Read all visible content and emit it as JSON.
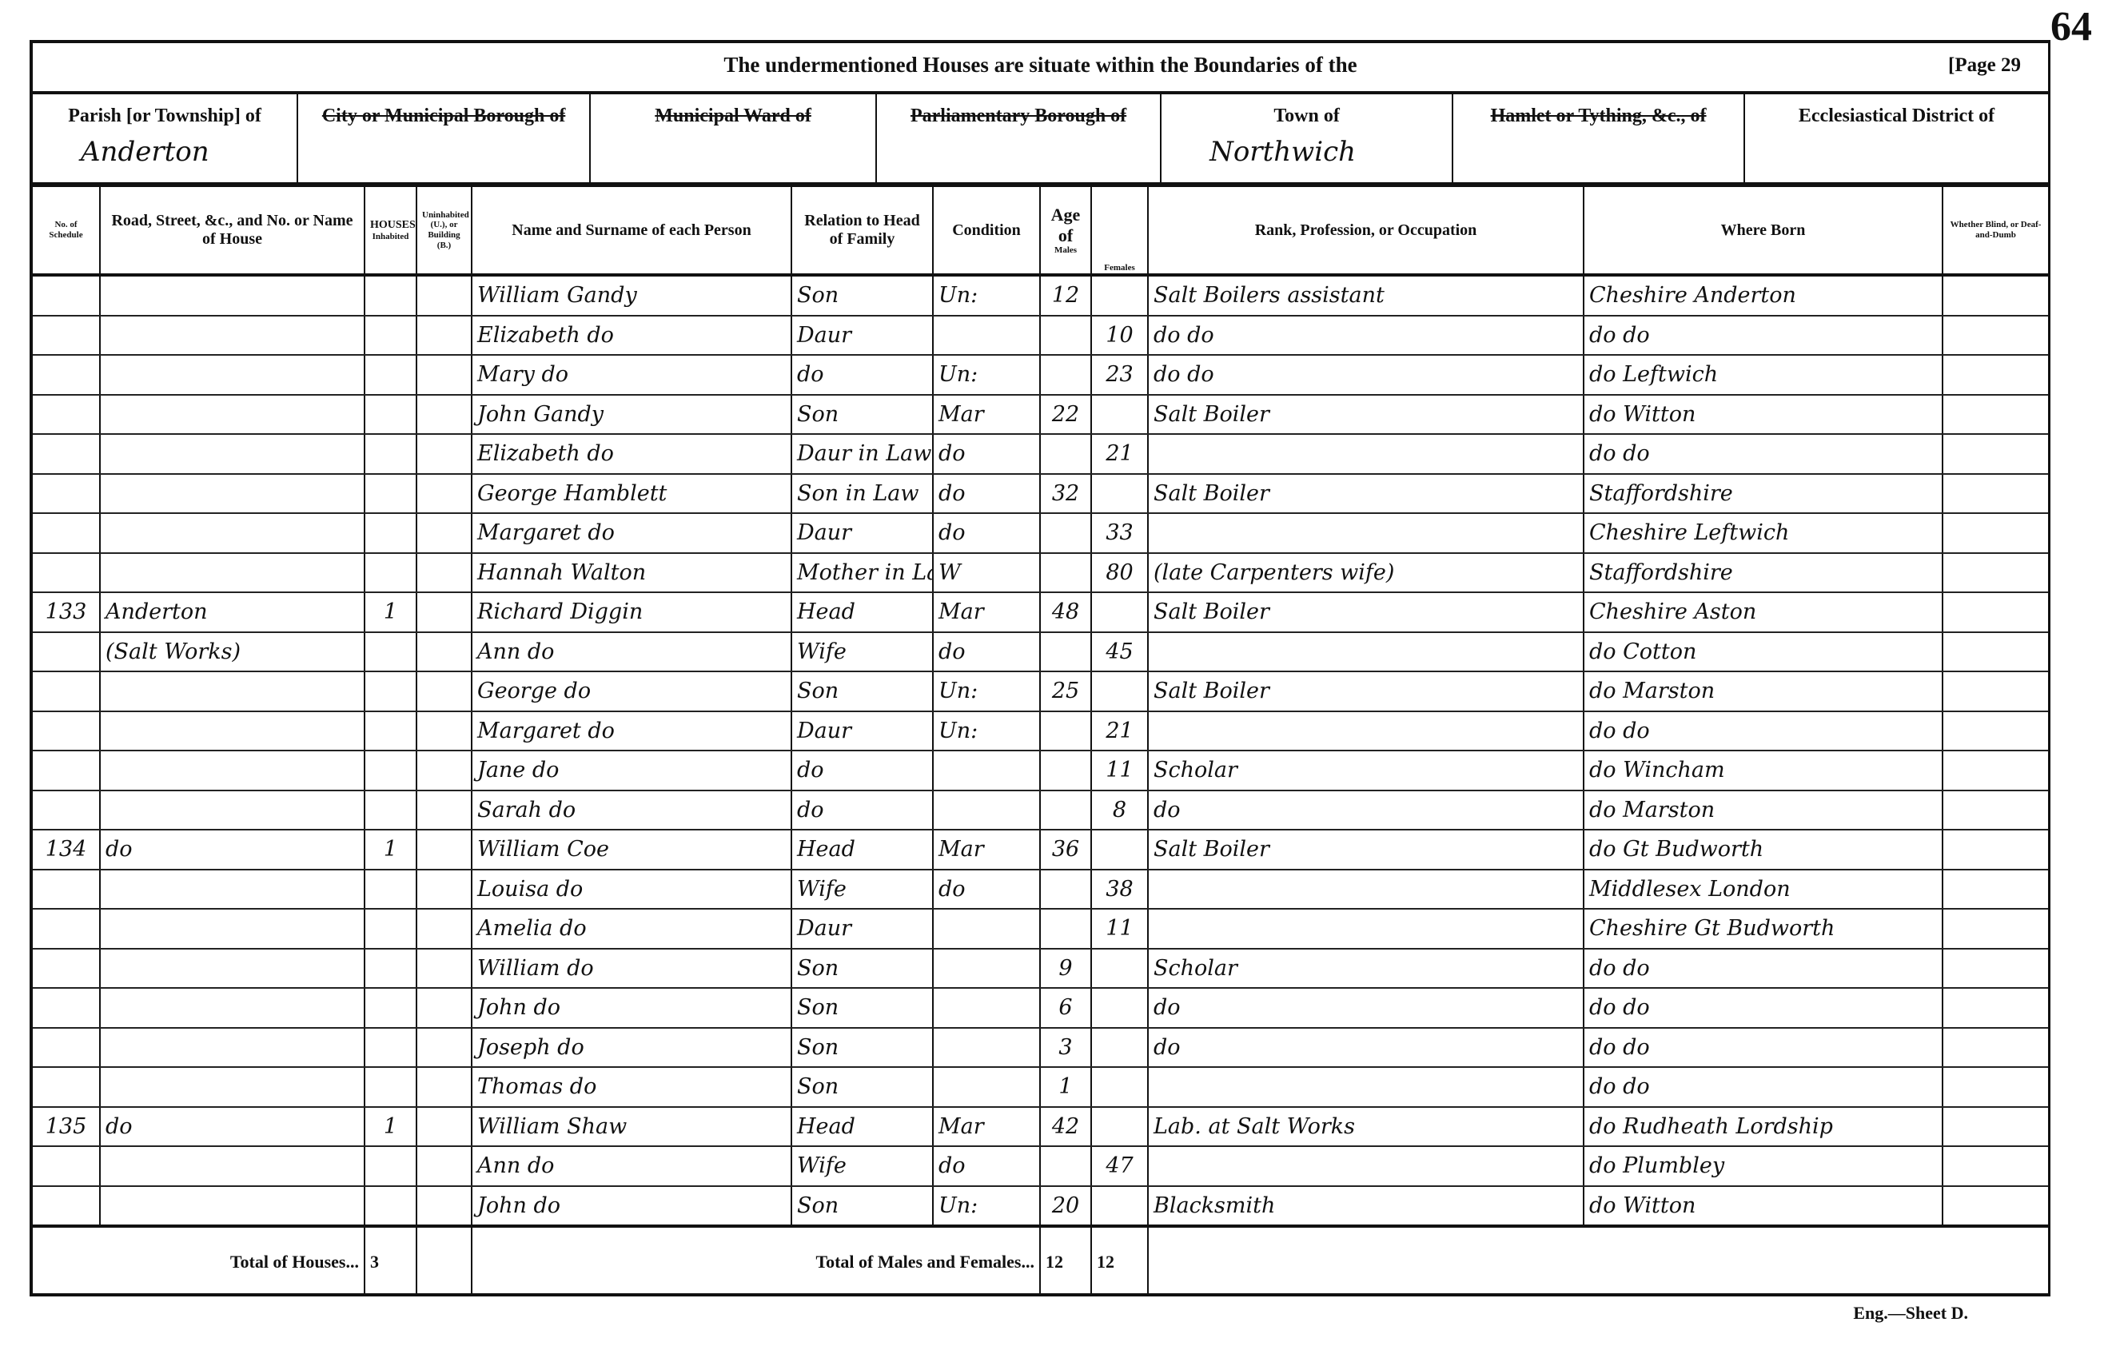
{
  "page_number": "64",
  "header": {
    "title": "The undermentioned Houses are situate within the Boundaries of the",
    "page_ref": "[Page 29",
    "places": [
      {
        "label": "Parish [or Township] of",
        "value": "Anderton",
        "struck": false
      },
      {
        "label": "City or Municipal Borough of",
        "value": "",
        "struck": true
      },
      {
        "label": "Municipal Ward of",
        "value": "",
        "struck": true
      },
      {
        "label": "Parliamentary Borough of",
        "value": "",
        "struck": true
      },
      {
        "label": "Town of",
        "value": "Northwich",
        "struck": false
      },
      {
        "label": "Hamlet or Tything, &c., of",
        "value": "",
        "struck": true
      },
      {
        "label": "Ecclesiastical District of",
        "value": "",
        "struck": false
      }
    ]
  },
  "columns": [
    "No. of Schedule",
    "Road, Street, &c., and No. or Name of House",
    "Inhabited",
    "Uninhabited (U.), or Building (B.)",
    "Name and Surname of each Person",
    "Relation to Head of Family",
    "Condition",
    "Males",
    "Females",
    "Rank, Profession, or Occupation",
    "Where Born",
    "Whether Blind, or Deaf-and-Dumb"
  ],
  "houses_label": "HOUSES",
  "age_label": "Age of",
  "rows": [
    [
      "",
      "",
      "",
      "",
      "William Gandy",
      "Son",
      "Un:",
      "12",
      "",
      "Salt Boilers assistant",
      "Cheshire   Anderton",
      ""
    ],
    [
      "",
      "",
      "",
      "",
      "Elizabeth do",
      "Daur",
      "",
      "",
      "10",
      "do      do",
      "do      do",
      ""
    ],
    [
      "",
      "",
      "",
      "",
      "Mary do",
      "do",
      "Un:",
      "",
      "23",
      "do      do",
      "do   Leftwich",
      ""
    ],
    [
      "",
      "",
      "",
      "",
      "John Gandy",
      "Son",
      "Mar",
      "22",
      "",
      "Salt Boiler",
      "do      Witton",
      ""
    ],
    [
      "",
      "",
      "",
      "",
      "Elizabeth do",
      "Daur in Law",
      "do",
      "",
      "21",
      "",
      "do      do",
      ""
    ],
    [
      "",
      "",
      "",
      "",
      "George Hamblett",
      "Son in Law",
      "do",
      "32",
      "",
      "Salt Boiler",
      "Staffordshire",
      ""
    ],
    [
      "",
      "",
      "",
      "",
      "Margaret do",
      "Daur",
      "do",
      "",
      "33",
      "",
      "Cheshire  Leftwich",
      ""
    ],
    [
      "",
      "",
      "",
      "",
      "Hannah Walton",
      "Mother in Law",
      "W",
      "",
      "80",
      "(late Carpenters wife)",
      "Staffordshire",
      ""
    ],
    [
      "133",
      "Anderton",
      "1",
      "",
      "Richard Diggin",
      "Head",
      "Mar",
      "48",
      "",
      "Salt Boiler",
      "Cheshire   Aston",
      ""
    ],
    [
      "",
      "(Salt Works)",
      "",
      "",
      "Ann do",
      "Wife",
      "do",
      "",
      "45",
      "",
      "do      Cotton",
      ""
    ],
    [
      "",
      "",
      "",
      "",
      "George do",
      "Son",
      "Un:",
      "25",
      "",
      "Salt Boiler",
      "do      Marston",
      ""
    ],
    [
      "",
      "",
      "",
      "",
      "Margaret do",
      "Daur",
      "Un:",
      "",
      "21",
      "",
      "do      do",
      ""
    ],
    [
      "",
      "",
      "",
      "",
      "Jane do",
      "do",
      "",
      "",
      "11",
      "Scholar",
      "do      Wincham",
      ""
    ],
    [
      "",
      "",
      "",
      "",
      "Sarah do",
      "do",
      "",
      "",
      "8",
      "do",
      "do      Marston",
      ""
    ],
    [
      "134",
      "do",
      "1",
      "",
      "William Coe",
      "Head",
      "Mar",
      "36",
      "",
      "Salt Boiler",
      "do   Gt Budworth",
      ""
    ],
    [
      "",
      "",
      "",
      "",
      "Louisa do",
      "Wife",
      "do",
      "",
      "38",
      "",
      "Middlesex  London",
      ""
    ],
    [
      "",
      "",
      "",
      "",
      "Amelia do",
      "Daur",
      "",
      "",
      "11",
      "",
      "Cheshire Gt Budworth",
      ""
    ],
    [
      "",
      "",
      "",
      "",
      "William do",
      "Son",
      "",
      "9",
      "",
      "Scholar",
      "do      do",
      ""
    ],
    [
      "",
      "",
      "",
      "",
      "John do",
      "Son",
      "",
      "6",
      "",
      "do",
      "do      do",
      ""
    ],
    [
      "",
      "",
      "",
      "",
      "Joseph do",
      "Son",
      "",
      "3",
      "",
      "do",
      "do      do",
      ""
    ],
    [
      "",
      "",
      "",
      "",
      "Thomas do",
      "Son",
      "",
      "1",
      "",
      "",
      "do      do",
      ""
    ],
    [
      "135",
      "do",
      "1",
      "",
      "William Shaw",
      "Head",
      "Mar",
      "42",
      "",
      "Lab. at Salt Works",
      "do  Rudheath Lordship",
      ""
    ],
    [
      "",
      "",
      "",
      "",
      "Ann do",
      "Wife",
      "do",
      "",
      "47",
      "",
      "do      Plumbley",
      ""
    ],
    [
      "",
      "",
      "",
      "",
      "John do",
      "Son",
      "Un:",
      "20",
      "",
      "Blacksmith",
      "do      Witton",
      ""
    ]
  ],
  "totals": {
    "houses_label": "Total of Houses...",
    "houses": "3",
    "persons_label": "Total of Males and Females...",
    "males": "12",
    "females": "12"
  },
  "footer": "Eng.—Sheet D."
}
